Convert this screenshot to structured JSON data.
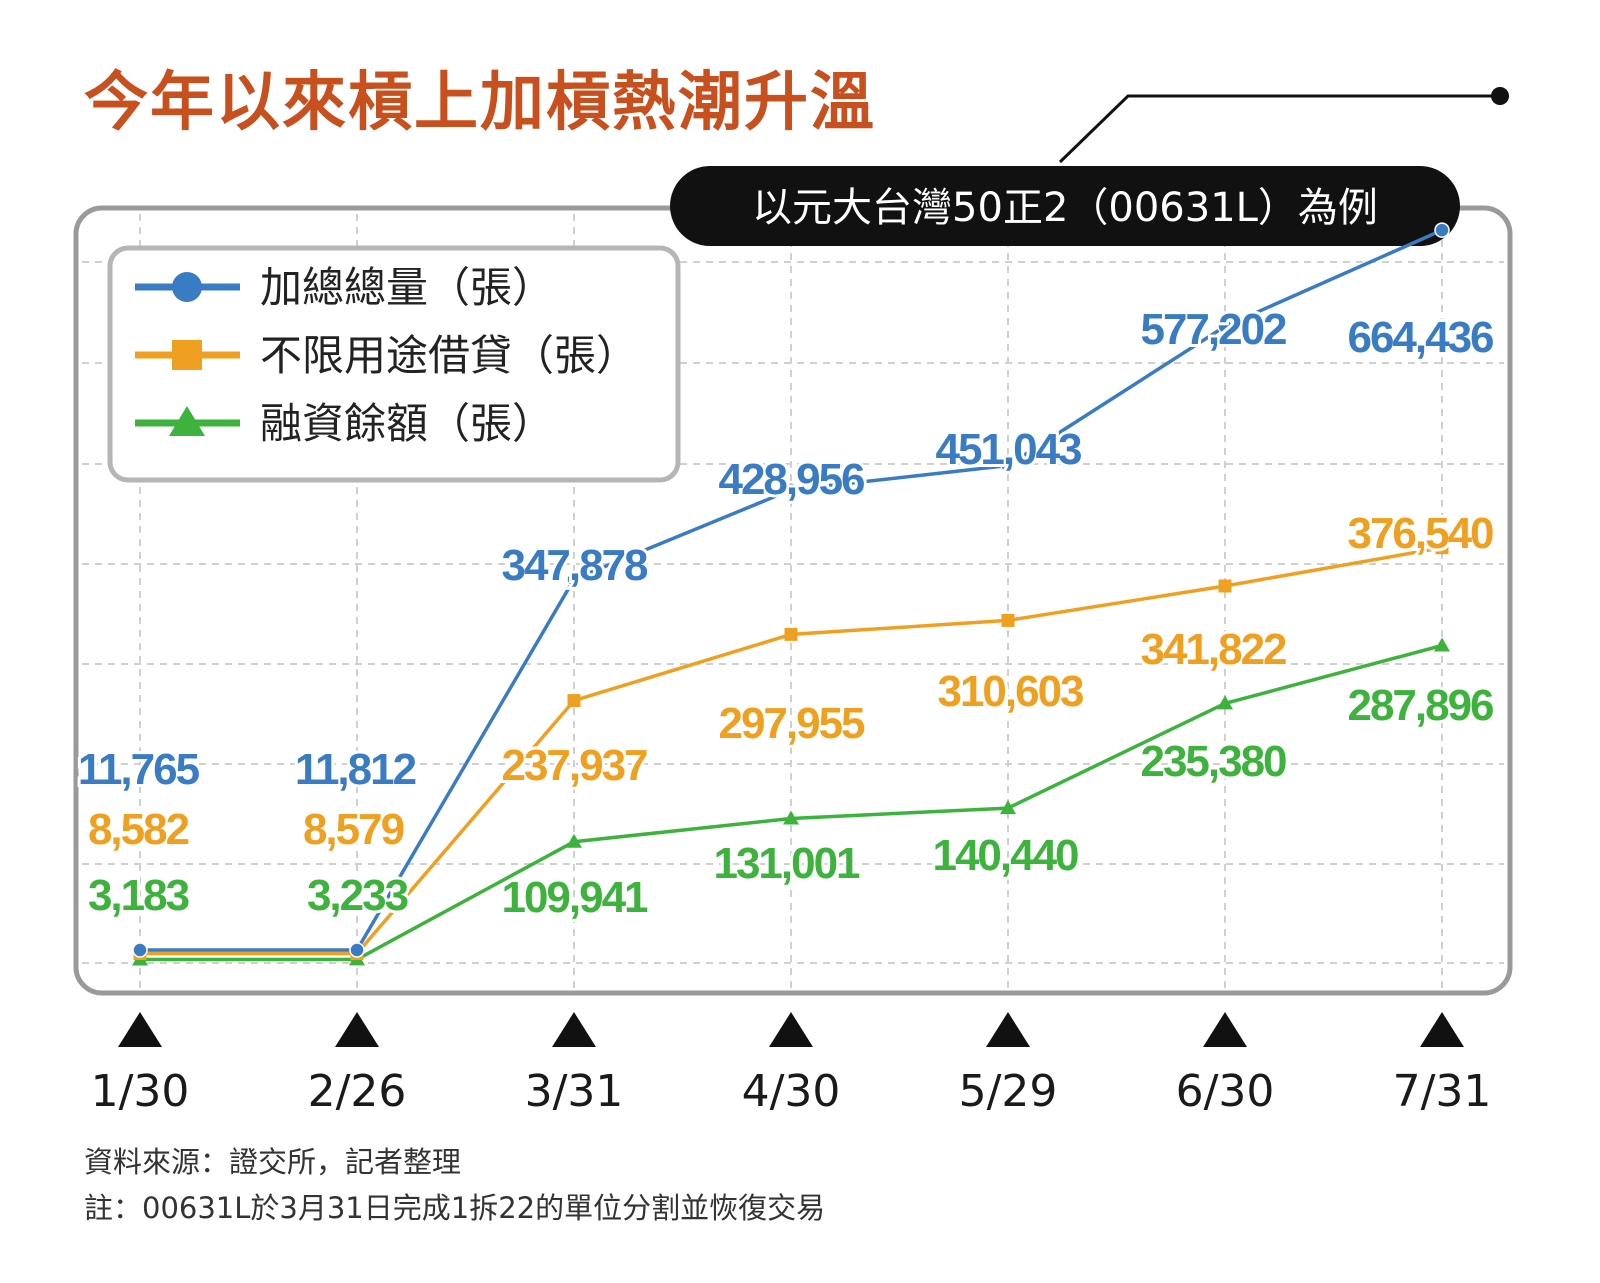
{
  "title": "今年以來槓上加槓熱潮升溫",
  "subtitle": "以元大台灣50正2（00631L）為例",
  "source": "資料來源：證交所，記者整理",
  "note": "註：00631L於3月31日完成1拆22的單位分割並恢復交易",
  "colors": {
    "title": "#c8501e",
    "blue": "#3a7cc4",
    "orange": "#f0a020",
    "green": "#3db33d",
    "frame": "#9a9a9a",
    "grid": "#cfcfcf",
    "banner": "#111111"
  },
  "chart_data": {
    "type": "line",
    "categories": [
      "1/30",
      "2/26",
      "3/31",
      "4/30",
      "5/29",
      "6/30",
      "7/31"
    ],
    "series": [
      {
        "name": "加總總量（張）",
        "color": "#3a7cc4",
        "marker": "circle",
        "values": [
          11765,
          11812,
          347878,
          428956,
          451043,
          577202,
          664436
        ],
        "labels": [
          "11,765",
          "11,812",
          "347,878",
          "428,956",
          "451,043",
          "577,202",
          "664,436"
        ]
      },
      {
        "name": "不限用途借貸（張）",
        "color": "#f0a020",
        "marker": "square",
        "values": [
          8582,
          8579,
          237937,
          297955,
          310603,
          341822,
          376540
        ],
        "labels": [
          "8,582",
          "8,579",
          "237,937",
          "297,955",
          "310,603",
          "341,822",
          "376,540"
        ]
      },
      {
        "name": "融資餘額（張）",
        "color": "#3db33d",
        "marker": "triangle",
        "values": [
          3183,
          3233,
          109941,
          131001,
          140440,
          235380,
          287896
        ],
        "labels": [
          "3,183",
          "3,233",
          "109,941",
          "131,001",
          "140,440",
          "235,380",
          "287,896"
        ]
      }
    ],
    "ylim": [
      0,
      680000
    ],
    "grid": true,
    "legend_position": "top-left"
  }
}
